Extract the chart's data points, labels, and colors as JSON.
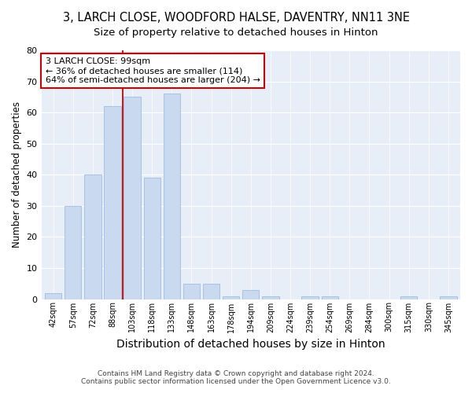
{
  "title": "3, LARCH CLOSE, WOODFORD HALSE, DAVENTRY, NN11 3NE",
  "subtitle": "Size of property relative to detached houses in Hinton",
  "xlabel": "Distribution of detached houses by size in Hinton",
  "ylabel": "Number of detached properties",
  "footnote1": "Contains HM Land Registry data © Crown copyright and database right 2024.",
  "footnote2": "Contains public sector information licensed under the Open Government Licence v3.0.",
  "categories": [
    "42sqm",
    "57sqm",
    "72sqm",
    "88sqm",
    "103sqm",
    "118sqm",
    "133sqm",
    "148sqm",
    "163sqm",
    "178sqm",
    "194sqm",
    "209sqm",
    "224sqm",
    "239sqm",
    "254sqm",
    "269sqm",
    "284sqm",
    "300sqm",
    "315sqm",
    "330sqm",
    "345sqm"
  ],
  "values": [
    2,
    30,
    40,
    62,
    65,
    39,
    66,
    5,
    5,
    1,
    3,
    1,
    0,
    1,
    1,
    0,
    0,
    0,
    1,
    0,
    1
  ],
  "bar_color": "#c9d9f0",
  "bar_edge_color": "#a0bce0",
  "vline_x": 3.5,
  "vline_color": "#cc0000",
  "annotation_text": "3 LARCH CLOSE: 99sqm\n← 36% of detached houses are smaller (114)\n64% of semi-detached houses are larger (204) →",
  "annotation_box_color": "#ffffff",
  "annotation_box_edge": "#cc0000",
  "ylim": [
    0,
    80
  ],
  "yticks": [
    0,
    10,
    20,
    30,
    40,
    50,
    60,
    70,
    80
  ],
  "fig_bg_color": "#ffffff",
  "plot_bg_color": "#e8eef8",
  "title_fontsize": 10.5,
  "subtitle_fontsize": 9.5,
  "xlabel_fontsize": 10,
  "ylabel_fontsize": 8.5
}
